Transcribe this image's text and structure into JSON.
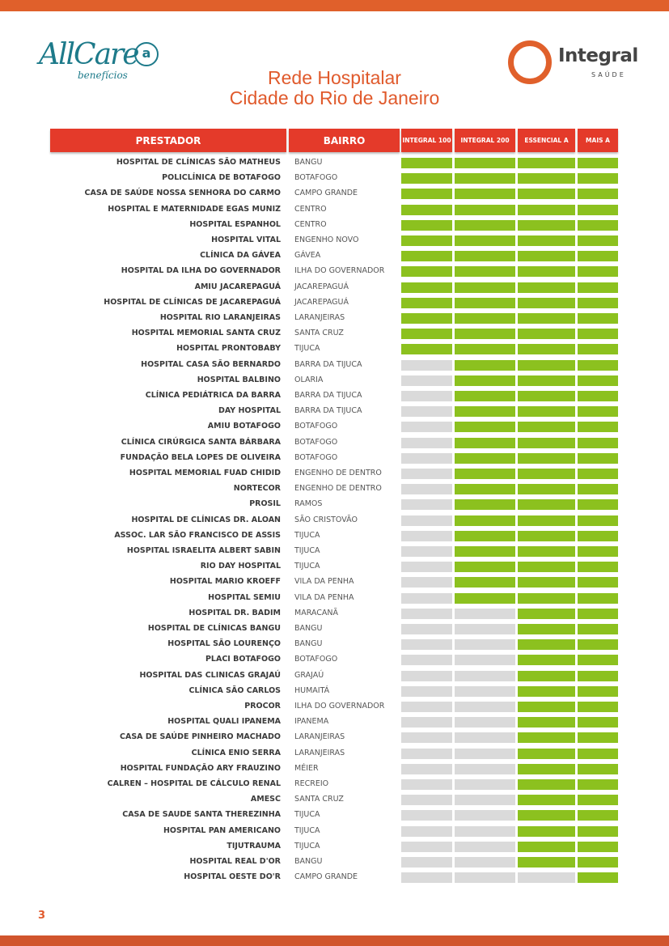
{
  "logos": {
    "allcare_word": "AllCare",
    "allcare_sub": "benefícios",
    "allcare_mark": "a",
    "integral_word": "Integral",
    "integral_sub": "SAÚDE"
  },
  "title": {
    "line1": "Rede Hospitalar",
    "line2": "Cidade do Rio de Janeiro"
  },
  "table": {
    "headers": {
      "prestador": "PRESTADOR",
      "bairro": "BAIRRO",
      "plan1": "INTEGRAL 100",
      "plan2": "INTEGRAL 200",
      "plan3": "ESSENCIAL A",
      "plan4": "MAIS A"
    },
    "rows": [
      {
        "prestador": "HOSPITAL DE CLÍNICAS SÃO MATHEUS",
        "bairro": "BANGU",
        "coverage": [
          true,
          true,
          true,
          true
        ]
      },
      {
        "prestador": "POLICLÍNICA DE BOTAFOGO",
        "bairro": "BOTAFOGO",
        "coverage": [
          true,
          true,
          true,
          true
        ]
      },
      {
        "prestador": "CASA DE SAÚDE NOSSA SENHORA DO CARMO",
        "bairro": "CAMPO GRANDE",
        "coverage": [
          true,
          true,
          true,
          true
        ]
      },
      {
        "prestador": "HOSPITAL E MATERNIDADE EGAS MUNIZ",
        "bairro": "CENTRO",
        "coverage": [
          true,
          true,
          true,
          true
        ]
      },
      {
        "prestador": "HOSPITAL ESPANHOL",
        "bairro": "CENTRO",
        "coverage": [
          true,
          true,
          true,
          true
        ]
      },
      {
        "prestador": "HOSPITAL VITAL",
        "bairro": "ENGENHO NOVO",
        "coverage": [
          true,
          true,
          true,
          true
        ]
      },
      {
        "prestador": "CLÍNICA DA GÁVEA",
        "bairro": "GÁVEA",
        "coverage": [
          true,
          true,
          true,
          true
        ]
      },
      {
        "prestador": "HOSPITAL DA ILHA DO GOVERNADOR",
        "bairro": "ILHA DO GOVERNADOR",
        "coverage": [
          true,
          true,
          true,
          true
        ]
      },
      {
        "prestador": "AMIU JACAREPAGUÁ",
        "bairro": "JACAREPAGUÁ",
        "coverage": [
          true,
          true,
          true,
          true
        ]
      },
      {
        "prestador": "HOSPITAL DE CLÍNICAS DE JACAREPAGUÁ",
        "bairro": "JACAREPAGUÁ",
        "coverage": [
          true,
          true,
          true,
          true
        ]
      },
      {
        "prestador": "HOSPITAL RIO LARANJEIRAS",
        "bairro": "LARANJEIRAS",
        "coverage": [
          true,
          true,
          true,
          true
        ]
      },
      {
        "prestador": "HOSPITAL MEMORIAL SANTA CRUZ",
        "bairro": "SANTA CRUZ",
        "coverage": [
          true,
          true,
          true,
          true
        ]
      },
      {
        "prestador": "HOSPITAL PRONTOBABY",
        "bairro": "TIJUCA",
        "coverage": [
          true,
          true,
          true,
          true
        ]
      },
      {
        "prestador": "HOSPITAL CASA SÃO BERNARDO",
        "bairro": "BARRA DA TIJUCA",
        "coverage": [
          false,
          true,
          true,
          true
        ]
      },
      {
        "prestador": "HOSPITAL BALBINO",
        "bairro": "OLARIA",
        "coverage": [
          false,
          true,
          true,
          true
        ]
      },
      {
        "prestador": "CLÍNICA PEDIÁTRICA DA BARRA",
        "bairro": "BARRA DA TIJUCA",
        "coverage": [
          false,
          true,
          true,
          true
        ]
      },
      {
        "prestador": "DAY HOSPITAL",
        "bairro": "BARRA DA TIJUCA",
        "coverage": [
          false,
          true,
          true,
          true
        ]
      },
      {
        "prestador": "AMIU BOTAFOGO",
        "bairro": "BOTAFOGO",
        "coverage": [
          false,
          true,
          true,
          true
        ]
      },
      {
        "prestador": "CLÍNICA CIRÚRGICA SANTA BÁRBARA",
        "bairro": "BOTAFOGO",
        "coverage": [
          false,
          true,
          true,
          true
        ]
      },
      {
        "prestador": "FUNDAÇÃO BELA LOPES DE OLIVEIRA",
        "bairro": "BOTAFOGO",
        "coverage": [
          false,
          true,
          true,
          true
        ]
      },
      {
        "prestador": "HOSPITAL MEMORIAL FUAD CHIDID",
        "bairro": "ENGENHO DE DENTRO",
        "coverage": [
          false,
          true,
          true,
          true
        ]
      },
      {
        "prestador": "NORTECOR",
        "bairro": "ENGENHO DE DENTRO",
        "coverage": [
          false,
          true,
          true,
          true
        ]
      },
      {
        "prestador": "PROSIL",
        "bairro": "RAMOS",
        "coverage": [
          false,
          true,
          true,
          true
        ]
      },
      {
        "prestador": "HOSPITAL DE CLÍNICAS DR. ALOAN",
        "bairro": "SÃO CRISTOVÃO",
        "coverage": [
          false,
          true,
          true,
          true
        ]
      },
      {
        "prestador": "ASSOC. LAR SÃO FRANCISCO DE ASSIS",
        "bairro": "TIJUCA",
        "coverage": [
          false,
          true,
          true,
          true
        ]
      },
      {
        "prestador": "HOSPITAL ISRAELITA ALBERT SABIN",
        "bairro": "TIJUCA",
        "coverage": [
          false,
          true,
          true,
          true
        ]
      },
      {
        "prestador": "RIO DAY HOSPITAL",
        "bairro": "TIJUCA",
        "coverage": [
          false,
          true,
          true,
          true
        ]
      },
      {
        "prestador": "HOSPITAL MARIO KROEFF",
        "bairro": "VILA DA PENHA",
        "coverage": [
          false,
          true,
          true,
          true
        ]
      },
      {
        "prestador": "HOSPITAL SEMIU",
        "bairro": "VILA DA PENHA",
        "coverage": [
          false,
          true,
          true,
          true
        ]
      },
      {
        "prestador": "HOSPITAL DR. BADIM",
        "bairro": "MARACANÃ",
        "coverage": [
          false,
          false,
          true,
          true
        ]
      },
      {
        "prestador": "HOSPITAL DE CLÍNICAS BANGU",
        "bairro": "BANGU",
        "coverage": [
          false,
          false,
          true,
          true
        ]
      },
      {
        "prestador": "HOSPITAL SÃO LOURENÇO",
        "bairro": "BANGU",
        "coverage": [
          false,
          false,
          true,
          true
        ]
      },
      {
        "prestador": "PLACI BOTAFOGO",
        "bairro": "BOTAFOGO",
        "coverage": [
          false,
          false,
          true,
          true
        ]
      },
      {
        "prestador": "HOSPITAL DAS CLINICAS GRAJAÚ",
        "bairro": "GRAJAÚ",
        "coverage": [
          false,
          false,
          true,
          true
        ]
      },
      {
        "prestador": "CLÍNICA SÃO CARLOS",
        "bairro": "HUMAITÁ",
        "coverage": [
          false,
          false,
          true,
          true
        ]
      },
      {
        "prestador": "PROCOR",
        "bairro": "ILHA DO GOVERNADOR",
        "coverage": [
          false,
          false,
          true,
          true
        ]
      },
      {
        "prestador": "HOSPITAL QUALI IPANEMA",
        "bairro": "IPANEMA",
        "coverage": [
          false,
          false,
          true,
          true
        ]
      },
      {
        "prestador": "CASA DE SAÚDE PINHEIRO MACHADO",
        "bairro": "LARANJEIRAS",
        "coverage": [
          false,
          false,
          true,
          true
        ]
      },
      {
        "prestador": "CLÍNICA ENIO SERRA",
        "bairro": "LARANJEIRAS",
        "coverage": [
          false,
          false,
          true,
          true
        ]
      },
      {
        "prestador": "HOSPITAL FUNDAÇÃO ARY FRAUZINO",
        "bairro": "MÉIER",
        "coverage": [
          false,
          false,
          true,
          true
        ]
      },
      {
        "prestador": "CALREN – HOSPITAL DE CÁLCULO RENAL",
        "bairro": "RECREIO",
        "coverage": [
          false,
          false,
          true,
          true
        ]
      },
      {
        "prestador": "AMESC",
        "bairro": "SANTA CRUZ",
        "coverage": [
          false,
          false,
          true,
          true
        ]
      },
      {
        "prestador": "CASA DE SAUDE SANTA THEREZINHA",
        "bairro": "TIJUCA",
        "coverage": [
          false,
          false,
          true,
          true
        ]
      },
      {
        "prestador": "HOSPITAL PAN AMERICANO",
        "bairro": "TIJUCA",
        "coverage": [
          false,
          false,
          true,
          true
        ]
      },
      {
        "prestador": "TIJUTRAUMA",
        "bairro": "TIJUCA",
        "coverage": [
          false,
          false,
          true,
          true
        ]
      },
      {
        "prestador": "HOSPITAL REAL D'OR",
        "bairro": "BANGU",
        "coverage": [
          false,
          false,
          true,
          true
        ]
      },
      {
        "prestador": "HOSPITAL OESTE DO'R",
        "bairro": "CAMPO GRANDE",
        "coverage": [
          false,
          false,
          false,
          true
        ]
      }
    ]
  },
  "colors": {
    "covered": "#8cc11f",
    "not_covered": "#dadada",
    "header": "#e43a2a",
    "accent": "#e0602b"
  },
  "page_number": "3"
}
